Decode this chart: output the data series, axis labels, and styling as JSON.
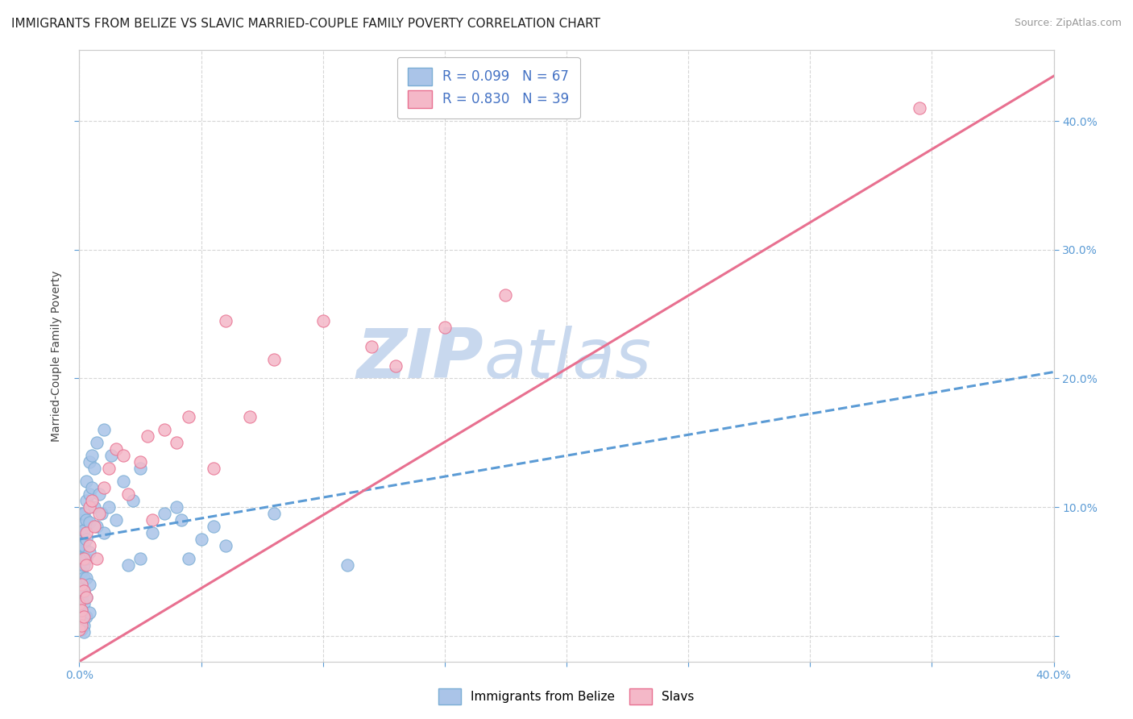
{
  "title": "IMMIGRANTS FROM BELIZE VS SLAVIC MARRIED-COUPLE FAMILY POVERTY CORRELATION CHART",
  "source": "Source: ZipAtlas.com",
  "ylabel": "Married-Couple Family Poverty",
  "watermark_zip": "ZIP",
  "watermark_atlas": "atlas",
  "legend_entries": [
    {
      "label": "Immigrants from Belize",
      "R": 0.099,
      "N": 67,
      "color": "#aac4e8",
      "edge_color": "#7aadd4",
      "line_color": "#5b9bd5",
      "line_style": "dashed"
    },
    {
      "label": "Slavs",
      "R": 0.83,
      "N": 39,
      "color": "#f4b8c8",
      "edge_color": "#e87090",
      "line_color": "#e87090",
      "line_style": "solid"
    }
  ],
  "belize_pts": [
    [
      0.0,
      0.09
    ],
    [
      0.0,
      0.075
    ],
    [
      0.0,
      0.068
    ],
    [
      0.0,
      0.062
    ],
    [
      0.0,
      0.055
    ],
    [
      0.001,
      0.095
    ],
    [
      0.001,
      0.08
    ],
    [
      0.001,
      0.07
    ],
    [
      0.001,
      0.06
    ],
    [
      0.001,
      0.05
    ],
    [
      0.001,
      0.04
    ],
    [
      0.001,
      0.03
    ],
    [
      0.001,
      0.02
    ],
    [
      0.001,
      0.01
    ],
    [
      0.001,
      0.005
    ],
    [
      0.002,
      0.095
    ],
    [
      0.002,
      0.082
    ],
    [
      0.002,
      0.07
    ],
    [
      0.002,
      0.055
    ],
    [
      0.002,
      0.045
    ],
    [
      0.002,
      0.035
    ],
    [
      0.002,
      0.025
    ],
    [
      0.002,
      0.015
    ],
    [
      0.002,
      0.008
    ],
    [
      0.002,
      0.003
    ],
    [
      0.003,
      0.12
    ],
    [
      0.003,
      0.105
    ],
    [
      0.003,
      0.09
    ],
    [
      0.003,
      0.075
    ],
    [
      0.003,
      0.06
    ],
    [
      0.003,
      0.045
    ],
    [
      0.003,
      0.03
    ],
    [
      0.003,
      0.015
    ],
    [
      0.004,
      0.135
    ],
    [
      0.004,
      0.11
    ],
    [
      0.004,
      0.088
    ],
    [
      0.004,
      0.065
    ],
    [
      0.004,
      0.04
    ],
    [
      0.004,
      0.018
    ],
    [
      0.005,
      0.14
    ],
    [
      0.005,
      0.115
    ],
    [
      0.006,
      0.13
    ],
    [
      0.006,
      0.1
    ],
    [
      0.007,
      0.15
    ],
    [
      0.007,
      0.085
    ],
    [
      0.008,
      0.11
    ],
    [
      0.009,
      0.095
    ],
    [
      0.01,
      0.16
    ],
    [
      0.01,
      0.08
    ],
    [
      0.012,
      0.1
    ],
    [
      0.013,
      0.14
    ],
    [
      0.015,
      0.09
    ],
    [
      0.018,
      0.12
    ],
    [
      0.02,
      0.055
    ],
    [
      0.022,
      0.105
    ],
    [
      0.025,
      0.13
    ],
    [
      0.025,
      0.06
    ],
    [
      0.03,
      0.08
    ],
    [
      0.035,
      0.095
    ],
    [
      0.04,
      0.1
    ],
    [
      0.042,
      0.09
    ],
    [
      0.045,
      0.06
    ],
    [
      0.05,
      0.075
    ],
    [
      0.055,
      0.085
    ],
    [
      0.06,
      0.07
    ],
    [
      0.08,
      0.095
    ],
    [
      0.11,
      0.055
    ]
  ],
  "slavs_pts": [
    [
      0.0,
      0.025
    ],
    [
      0.0,
      0.015
    ],
    [
      0.0,
      0.005
    ],
    [
      0.001,
      0.04
    ],
    [
      0.001,
      0.02
    ],
    [
      0.001,
      0.008
    ],
    [
      0.002,
      0.06
    ],
    [
      0.002,
      0.035
    ],
    [
      0.002,
      0.015
    ],
    [
      0.003,
      0.08
    ],
    [
      0.003,
      0.055
    ],
    [
      0.003,
      0.03
    ],
    [
      0.004,
      0.1
    ],
    [
      0.004,
      0.07
    ],
    [
      0.005,
      0.105
    ],
    [
      0.006,
      0.085
    ],
    [
      0.007,
      0.06
    ],
    [
      0.008,
      0.095
    ],
    [
      0.01,
      0.115
    ],
    [
      0.012,
      0.13
    ],
    [
      0.015,
      0.145
    ],
    [
      0.018,
      0.14
    ],
    [
      0.02,
      0.11
    ],
    [
      0.025,
      0.135
    ],
    [
      0.028,
      0.155
    ],
    [
      0.03,
      0.09
    ],
    [
      0.035,
      0.16
    ],
    [
      0.04,
      0.15
    ],
    [
      0.045,
      0.17
    ],
    [
      0.055,
      0.13
    ],
    [
      0.06,
      0.245
    ],
    [
      0.07,
      0.17
    ],
    [
      0.08,
      0.215
    ],
    [
      0.1,
      0.245
    ],
    [
      0.12,
      0.225
    ],
    [
      0.13,
      0.21
    ],
    [
      0.15,
      0.24
    ],
    [
      0.175,
      0.265
    ],
    [
      0.345,
      0.41
    ]
  ],
  "belize_line": [
    0.0,
    0.4,
    0.075,
    0.205
  ],
  "slavs_line": [
    0.0,
    0.4,
    -0.02,
    0.435
  ],
  "xlim": [
    0.0,
    0.4
  ],
  "ylim": [
    -0.02,
    0.455
  ],
  "yticks": [
    0.0,
    0.1,
    0.2,
    0.3,
    0.4
  ],
  "yticklabels_right": [
    "",
    "10.0%",
    "20.0%",
    "30.0%",
    "40.0%"
  ],
  "xticks": [
    0.0,
    0.05,
    0.1,
    0.15,
    0.2,
    0.25,
    0.3,
    0.35,
    0.4
  ],
  "xticklabels": [
    "0.0%",
    "",
    "",
    "",
    "",
    "",
    "",
    "",
    "40.0%"
  ],
  "grid_color": "#cccccc",
  "background_color": "#ffffff",
  "title_fontsize": 11,
  "source_fontsize": 9,
  "tick_color": "#5b9bd5",
  "watermark_color_zip": "#c8d8ee",
  "watermark_color_atlas": "#c8d8ee",
  "watermark_fontsize": 62
}
